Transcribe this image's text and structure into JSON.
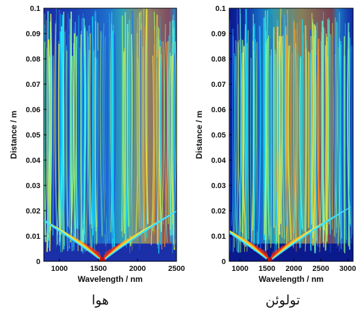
{
  "chart_data": [
    {
      "type": "heatmap",
      "caption": "هوا",
      "xlabel": "Wavelength / nm",
      "ylabel": "Distance / m",
      "xlim": [
        800,
        2500
      ],
      "ylim": [
        0,
        0.1
      ],
      "x_ticks": [
        "1000",
        "1500",
        "2000",
        "2500"
      ],
      "y_ticks": [
        "0",
        "0.01",
        "0.02",
        "0.03",
        "0.04",
        "0.05",
        "0.06",
        "0.07",
        "0.08",
        "0.09",
        "0.1"
      ],
      "colormap": "jet",
      "background_color": "#1a2fa8",
      "features": {
        "source_point": {
          "x": 1550,
          "y": 0
        },
        "high_intensity_band": {
          "x_start": 1800,
          "x_end": 2400
        }
      }
    },
    {
      "type": "heatmap",
      "caption": "تولوئن",
      "xlabel": "Wavelength / nm",
      "ylabel": "Distance / m",
      "xlim": [
        800,
        3100
      ],
      "ylim": [
        0,
        0.1
      ],
      "x_ticks": [
        "1000",
        "1500",
        "2000",
        "2500",
        "3000"
      ],
      "y_ticks": [
        "0",
        "0.01",
        "0.02",
        "0.03",
        "0.04",
        "0.05",
        "0.06",
        "0.07",
        "0.08",
        "0.09",
        "0.1"
      ],
      "colormap": "jet",
      "background_color": "#0a1a8c",
      "features": {
        "source_point": {
          "x": 1550,
          "y": 0
        },
        "high_intensity_band": {
          "x_start": 1600,
          "x_end": 2700
        }
      }
    }
  ]
}
